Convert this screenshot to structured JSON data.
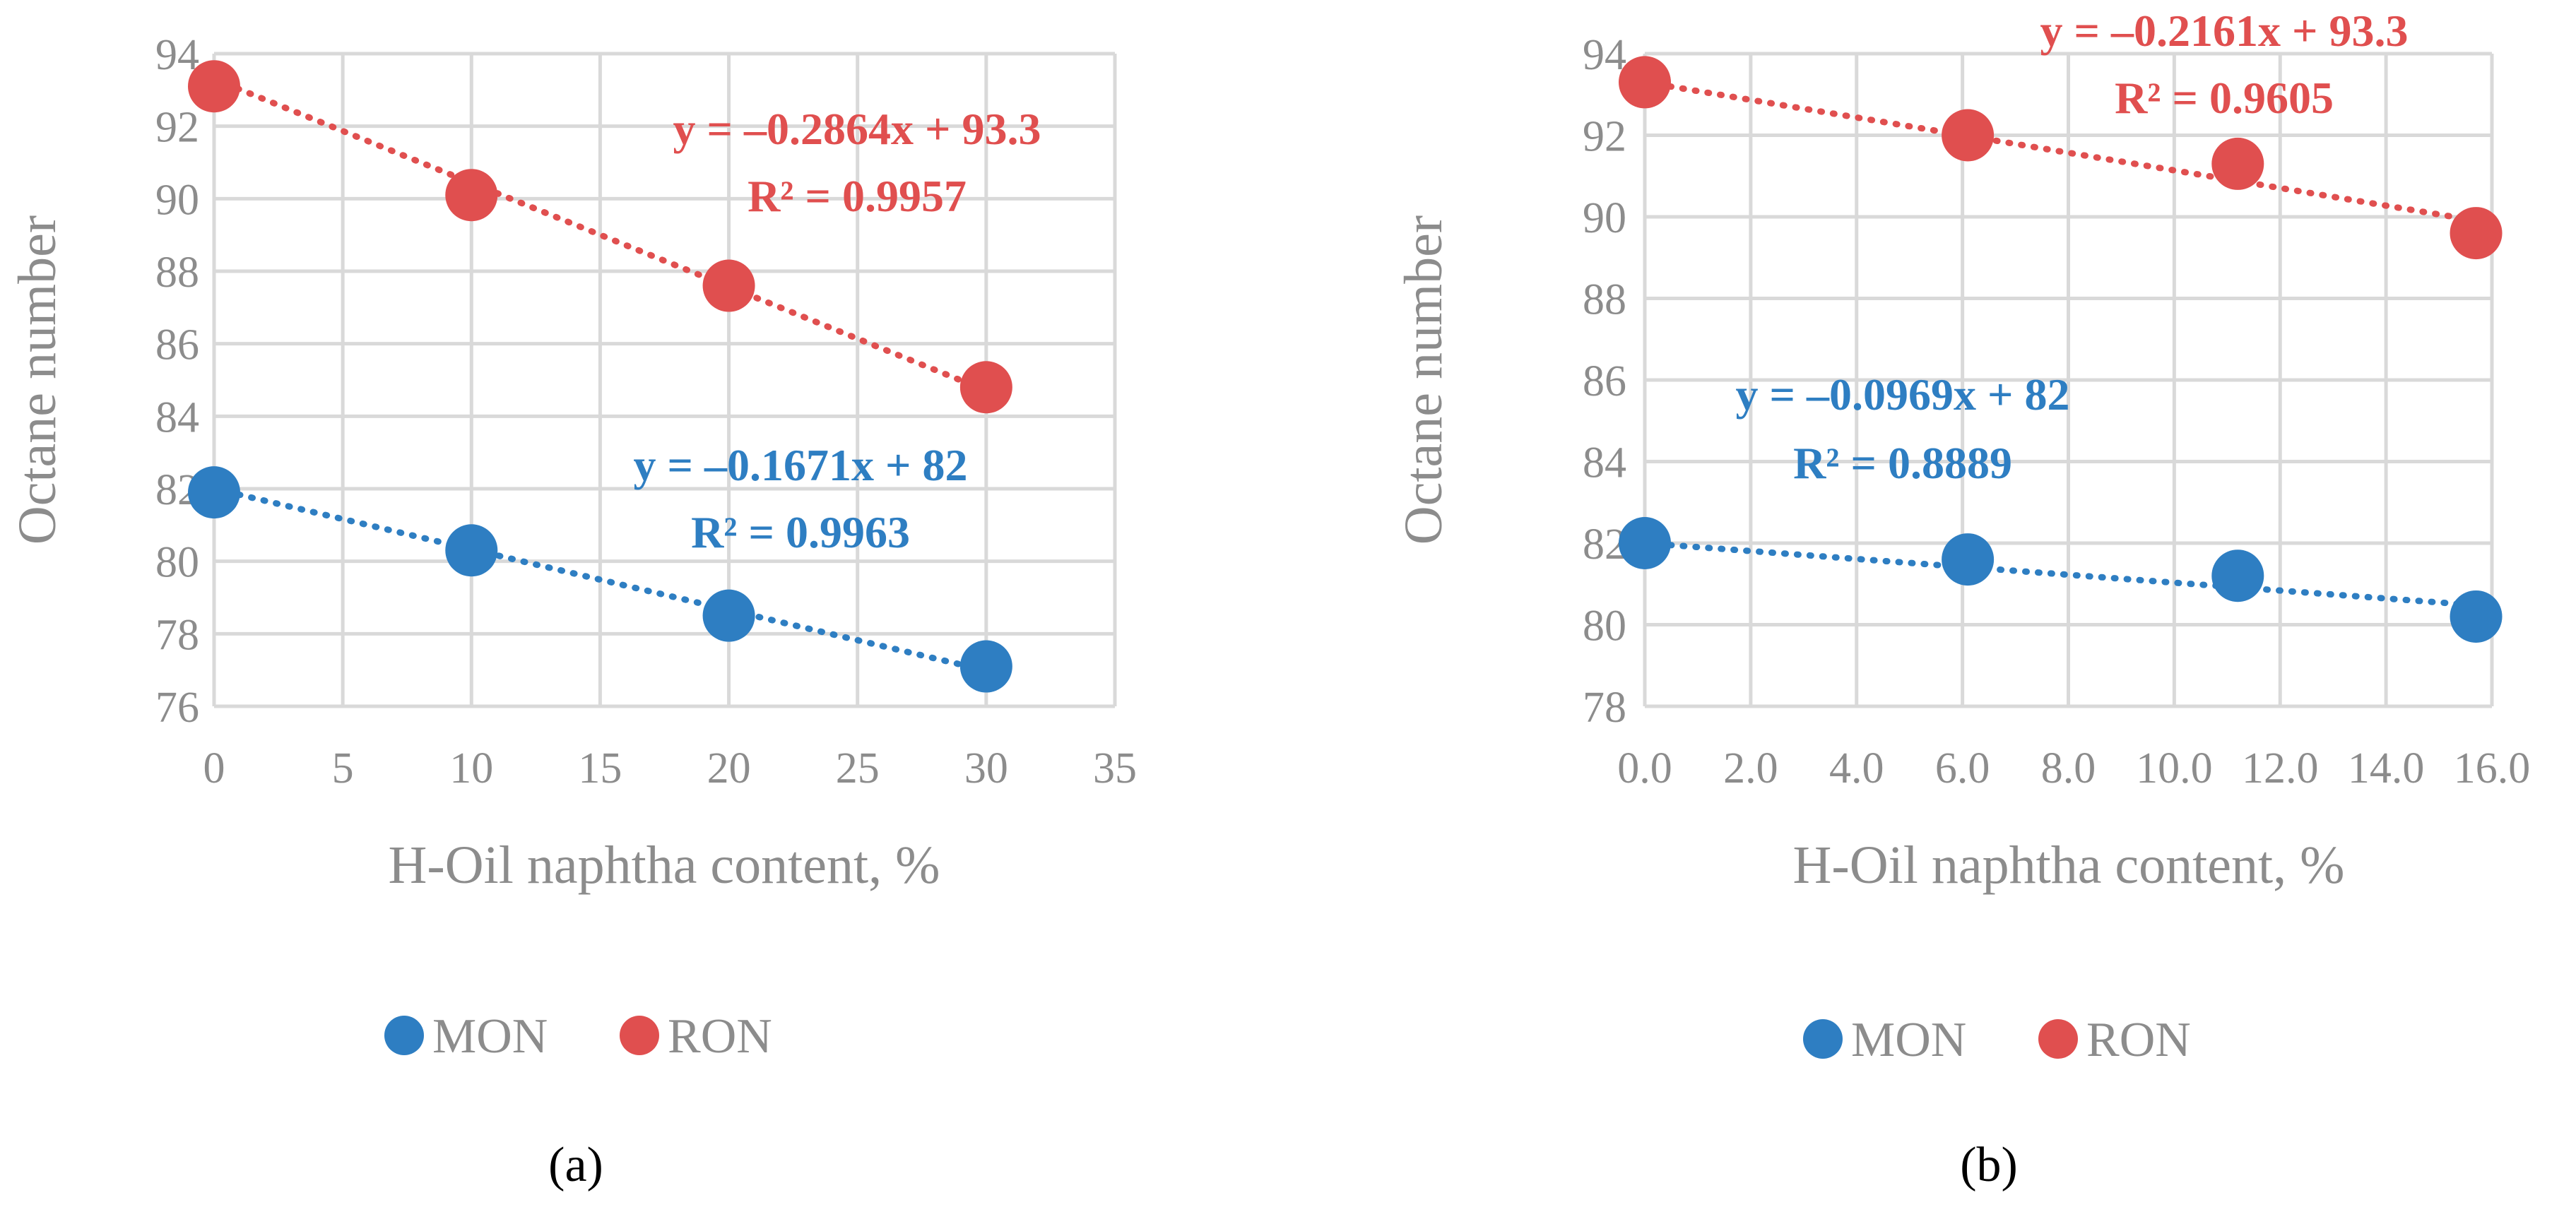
{
  "chart_data": [
    {
      "type": "scatter",
      "panel_label": "(a)",
      "xlabel": "H-Oil naphtha content, %",
      "ylabel": "Octane number",
      "xlim": [
        0,
        35
      ],
      "ylim": [
        76,
        94
      ],
      "x_ticks": [
        "0",
        "5",
        "10",
        "15",
        "20",
        "25",
        "30",
        "35"
      ],
      "y_ticks": [
        "76",
        "78",
        "80",
        "82",
        "84",
        "86",
        "88",
        "90",
        "92",
        "94"
      ],
      "x_tick_values": [
        0,
        5,
        10,
        15,
        20,
        25,
        30,
        35
      ],
      "y_tick_values": [
        76,
        78,
        80,
        82,
        84,
        86,
        88,
        90,
        92,
        94
      ],
      "grid": true,
      "legend": "bottom",
      "series": [
        {
          "name": "MON",
          "color": "#2e7ec2",
          "x": [
            0,
            10,
            20,
            30
          ],
          "values": [
            81.9,
            80.3,
            78.5,
            77.1
          ],
          "trendline": {
            "slope": -0.1671,
            "intercept": 82,
            "x_range": [
              0,
              30
            ]
          },
          "equation": "y = –0.1671x + 82",
          "r2": "R² = 0.9963"
        },
        {
          "name": "RON",
          "color": "#e04f4f",
          "x": [
            0,
            10,
            20,
            30
          ],
          "values": [
            93.1,
            90.1,
            87.6,
            84.8
          ],
          "trendline": {
            "slope": -0.2864,
            "intercept": 93.3,
            "x_range": [
              0,
              30
            ]
          },
          "equation": "y = –0.2864x + 93.3",
          "r2": "R² = 0.9957"
        }
      ]
    },
    {
      "type": "scatter",
      "panel_label": "(b)",
      "xlabel": "H-Oil naphtha content, %",
      "ylabel": "Octane number",
      "xlim": [
        0,
        16
      ],
      "ylim": [
        78,
        94
      ],
      "x_ticks": [
        "0.0",
        "2.0",
        "4.0",
        "6.0",
        "8.0",
        "10.0",
        "12.0",
        "14.0",
        "16.0"
      ],
      "y_ticks": [
        "78",
        "80",
        "82",
        "84",
        "86",
        "88",
        "90",
        "92",
        "94"
      ],
      "x_tick_values": [
        0,
        2,
        4,
        6,
        8,
        10,
        12,
        14,
        16
      ],
      "y_tick_values": [
        78,
        80,
        82,
        84,
        86,
        88,
        90,
        92,
        94
      ],
      "grid": true,
      "legend": "bottom",
      "series": [
        {
          "name": "MON",
          "color": "#2e7ec2",
          "x": [
            0,
            6.1,
            11.2,
            15.7
          ],
          "values": [
            82.0,
            81.6,
            81.2,
            80.2
          ],
          "trendline": {
            "slope": -0.0969,
            "intercept": 82,
            "x_range": [
              0,
              15.7
            ]
          },
          "equation": "y = –0.0969x + 82",
          "r2": "R² = 0.8889"
        },
        {
          "name": "RON",
          "color": "#e04f4f",
          "x": [
            0,
            6.1,
            11.2,
            15.7
          ],
          "values": [
            93.3,
            92.0,
            91.3,
            89.6
          ],
          "trendline": {
            "slope": -0.2161,
            "intercept": 93.3,
            "x_range": [
              0,
              15.7
            ]
          },
          "equation": "y = –0.2161x + 93.3",
          "r2": "R² = 0.9605"
        }
      ]
    }
  ]
}
